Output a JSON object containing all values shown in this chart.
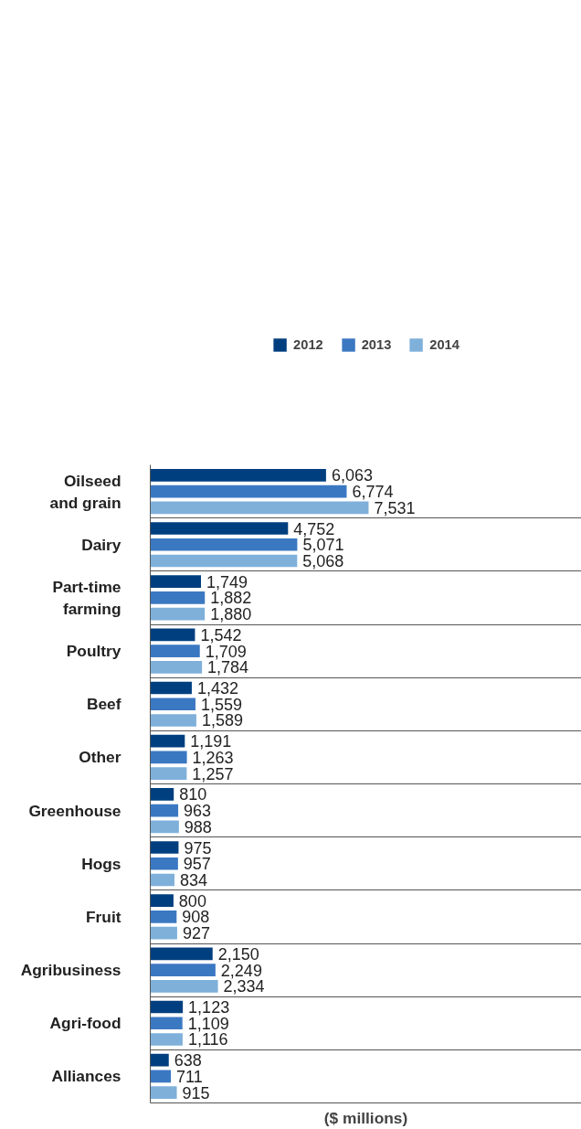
{
  "chart_data": {
    "type": "bar",
    "orientation": "horizontal",
    "xlabel": "($ millions)",
    "categories": [
      "Oilseed and grain",
      "Dairy",
      "Part-time farming",
      "Poultry",
      "Beef",
      "Other",
      "Greenhouse",
      "Hogs",
      "Fruit",
      "Agribusiness",
      "Agri-food",
      "Alliances"
    ],
    "series": [
      {
        "name": "2012",
        "color": "#003f7f",
        "values": [
          6063,
          4752,
          1749,
          1542,
          1432,
          1191,
          810,
          975,
          800,
          2150,
          1123,
          638
        ],
        "value_labels": [
          "6,063",
          "4,752",
          "1,749",
          "1,542",
          "1,432",
          "1,191",
          "810",
          "975",
          "800",
          "2,150",
          "1,123",
          "638"
        ]
      },
      {
        "name": "2013",
        "color": "#3b78c2",
        "values": [
          6774,
          5071,
          1882,
          1709,
          1559,
          1263,
          963,
          957,
          908,
          2249,
          1109,
          711
        ],
        "value_labels": [
          "6,774",
          "5,071",
          "1,882",
          "1,709",
          "1,559",
          "1,263",
          "963",
          "957",
          "908",
          "2,249",
          "1,109",
          "711"
        ]
      },
      {
        "name": "2014",
        "color": "#7eb0da",
        "values": [
          7531,
          5068,
          1880,
          1784,
          1589,
          1257,
          988,
          834,
          927,
          2334,
          1116,
          915
        ],
        "value_labels": [
          "7,531",
          "5,068",
          "1,880",
          "1,784",
          "1,589",
          "1,257",
          "988",
          "834",
          "927",
          "2,334",
          "1,116",
          "915"
        ]
      }
    ],
    "legend": "top",
    "grid": "y",
    "tick_labels": "y"
  }
}
